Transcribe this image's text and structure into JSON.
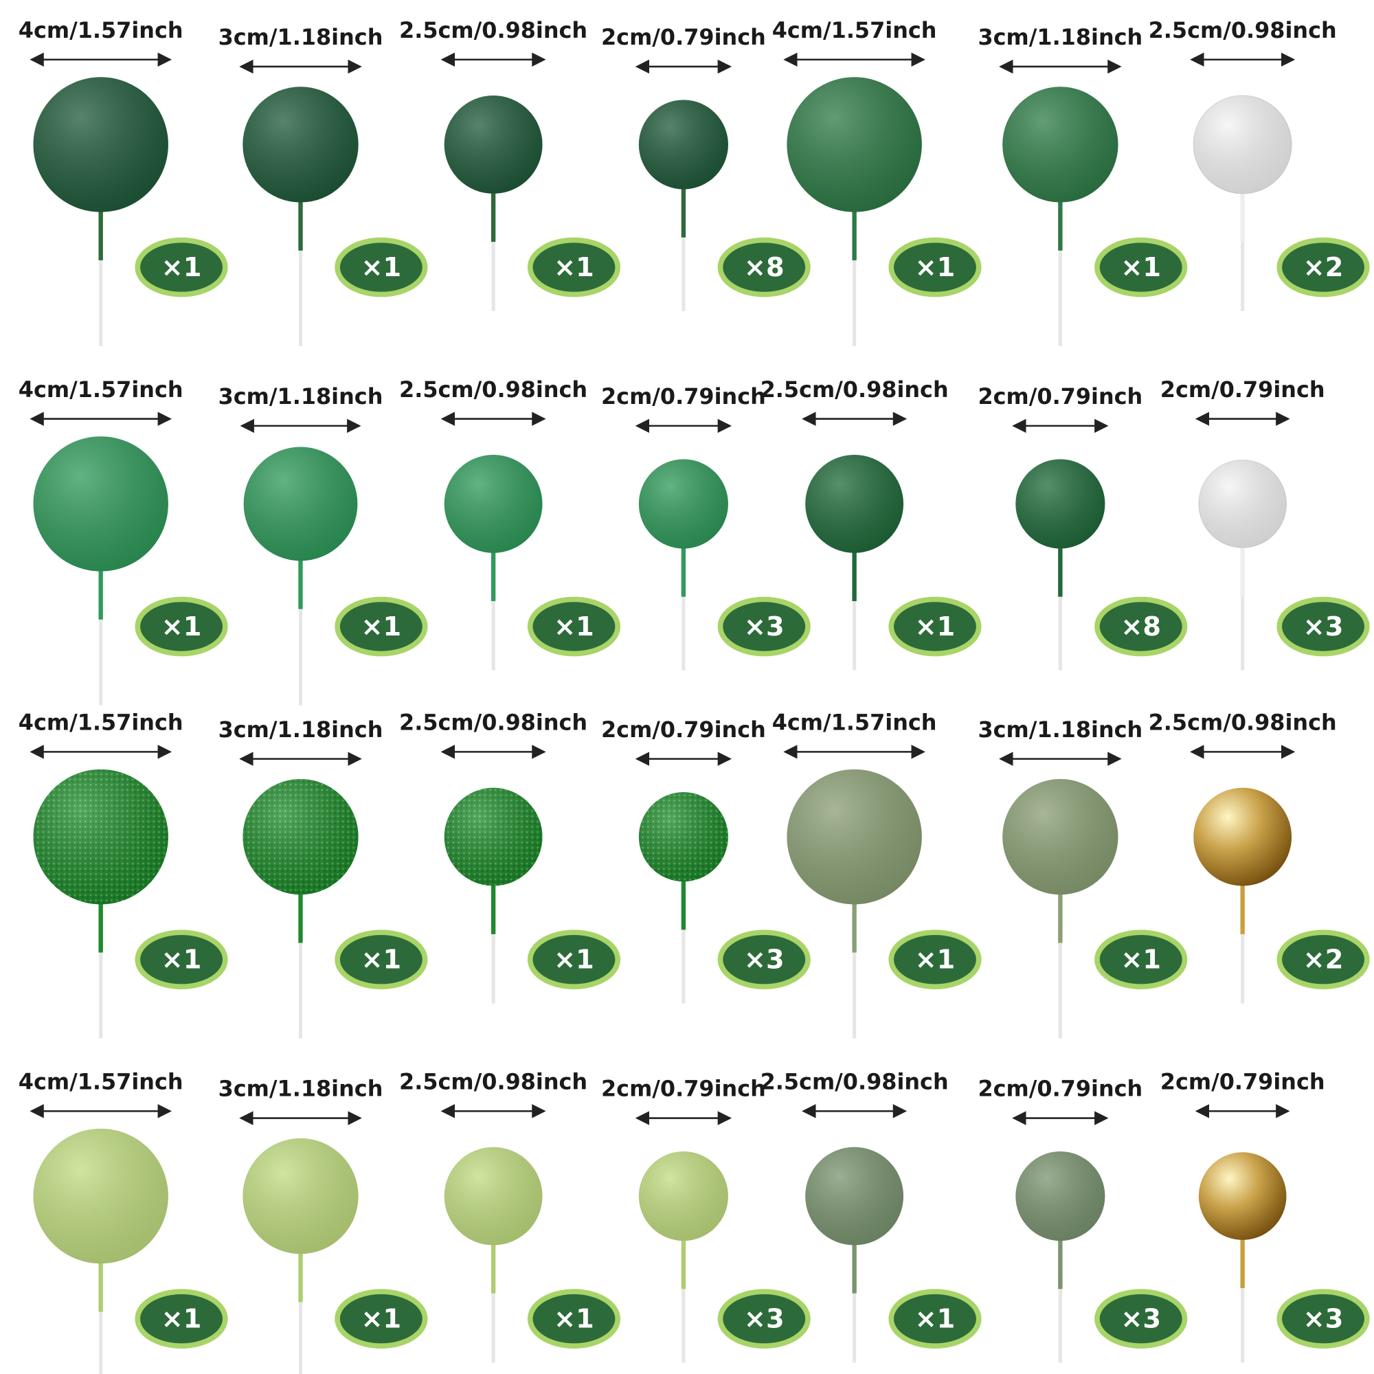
{
  "rows": [
    {
      "items": [
        {
          "size": "4cm/1.57inch",
          "count": "×1"
        },
        {
          "size": "3cm/1.18inch",
          "count": "×1"
        },
        {
          "size": "2.5cm/0.98inch",
          "count": "×1"
        },
        {
          "size": "2cm/0.79inch",
          "count": "×8"
        },
        {
          "size": "4cm/1.57inch",
          "count": "×1"
        },
        {
          "size": "3cm/1.18inch",
          "count": "×1"
        },
        {
          "size": "2.5cm/0.98inch",
          "count": "×2"
        }
      ]
    },
    {
      "items": [
        {
          "size": "4cm/1.57inch",
          "count": "×1"
        },
        {
          "size": "3cm/1.18inch",
          "count": "×1"
        },
        {
          "size": "2.5cm/0.98inch",
          "count": "×1"
        },
        {
          "size": "2cm/0.79inch",
          "count": "×3"
        },
        {
          "size": "2.5cm/0.98inch",
          "count": "×1"
        },
        {
          "size": "2cm/0.79inch",
          "count": "×8"
        },
        {
          "size": "2cm/0.79inch",
          "count": "×3"
        }
      ]
    },
    {
      "items": [
        {
          "size": "4cm/1.57inch",
          "count": "×1"
        },
        {
          "size": "3cm/1.18inch",
          "count": "×1"
        },
        {
          "size": "2.5cm/0.98inch",
          "count": "×1"
        },
        {
          "size": "2cm/0.79inch",
          "count": "×3"
        },
        {
          "size": "4cm/1.57inch",
          "count": "×1"
        },
        {
          "size": "3cm/1.18inch",
          "count": "×1"
        },
        {
          "size": "2.5cm/0.98inch",
          "count": "×2"
        }
      ]
    },
    {
      "items": [
        {
          "size": "4cm/1.57inch",
          "count": "×1"
        },
        {
          "size": "3cm/1.18inch",
          "count": "×1"
        },
        {
          "size": "2.5cm/0.98inch",
          "count": "×1"
        },
        {
          "size": "2cm/0.79inch",
          "count": "×3"
        },
        {
          "size": "2.5cm/0.98inch",
          "count": "×1"
        },
        {
          "size": "2cm/0.79inch",
          "count": "×3"
        },
        {
          "size": "2cm/0.79inch",
          "count": "×3"
        }
      ]
    }
  ]
}
